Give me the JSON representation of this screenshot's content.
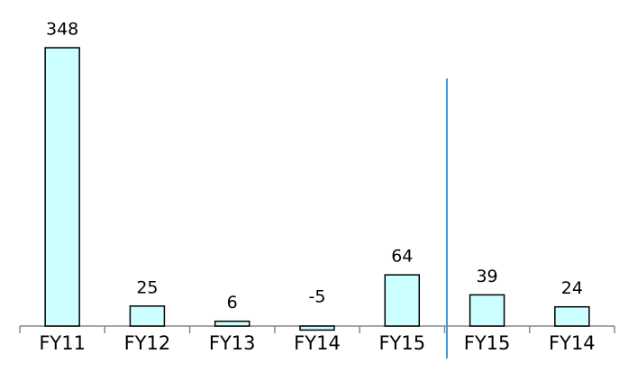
{
  "chart_data": {
    "type": "bar",
    "categories": [
      "FY11",
      "FY12",
      "FY13",
      "FY14",
      "FY15",
      "FY15",
      "FY14"
    ],
    "values": [
      348,
      25,
      6,
      -5,
      64,
      39,
      24
    ],
    "color": "#ccffff"
  }
}
